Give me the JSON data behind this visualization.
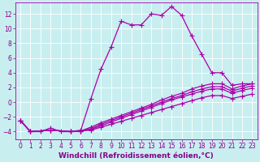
{
  "xlabel": "Windchill (Refroidissement éolien,°C)",
  "xlim": [
    -0.5,
    23.5
  ],
  "ylim": [
    -5,
    13.5
  ],
  "xticks": [
    0,
    1,
    2,
    3,
    4,
    5,
    6,
    7,
    8,
    9,
    10,
    11,
    12,
    13,
    14,
    15,
    16,
    17,
    18,
    19,
    20,
    21,
    22,
    23
  ],
  "yticks": [
    -4,
    -2,
    0,
    2,
    4,
    6,
    8,
    10,
    12
  ],
  "bg_color": "#c8eef0",
  "line_color": "#aa00aa",
  "grid_color": "#ffffff",
  "lines": [
    {
      "x": [
        0,
        1,
        2,
        3,
        4,
        5,
        6,
        7,
        8,
        9,
        10,
        11,
        12,
        13,
        14,
        15,
        16,
        17,
        18,
        19,
        20,
        21,
        22,
        23
      ],
      "y": [
        -2.5,
        -4,
        -4,
        -3.5,
        -4,
        -4,
        -3.8,
        0.5,
        4.5,
        7.5,
        11,
        10.5,
        10.5,
        12,
        11.8,
        13,
        11.8,
        9,
        6.5,
        4,
        4,
        2.3,
        2.5,
        2.5
      ]
    },
    {
      "x": [
        0,
        1,
        3,
        5,
        6,
        7,
        8,
        9,
        10,
        11,
        12,
        13,
        14,
        15,
        16,
        17,
        18,
        19,
        20,
        21,
        22,
        23
      ],
      "y": [
        -2.5,
        -4,
        -3.8,
        -4,
        -3.9,
        -3.4,
        -2.8,
        -2.3,
        -1.8,
        -1.3,
        -0.8,
        -0.3,
        0.3,
        0.8,
        1.2,
        1.8,
        2.2,
        2.5,
        2.5,
        1.8,
        2.2,
        2.5
      ]
    },
    {
      "x": [
        0,
        1,
        3,
        5,
        6,
        7,
        8,
        9,
        10,
        11,
        12,
        13,
        14,
        15,
        16,
        17,
        18,
        19,
        20,
        21,
        22,
        23
      ],
      "y": [
        -2.5,
        -4,
        -3.8,
        -4,
        -3.9,
        -3.6,
        -3.0,
        -2.5,
        -2.0,
        -1.5,
        -1.0,
        -0.5,
        0.0,
        0.5,
        0.9,
        1.4,
        1.8,
        2.1,
        2.1,
        1.5,
        1.9,
        2.2
      ]
    },
    {
      "x": [
        0,
        1,
        3,
        5,
        6,
        7,
        8,
        9,
        10,
        11,
        12,
        13,
        14,
        15,
        16,
        17,
        18,
        19,
        20,
        21,
        22,
        23
      ],
      "y": [
        -2.5,
        -4,
        -3.8,
        -4,
        -3.9,
        -3.7,
        -3.2,
        -2.7,
        -2.2,
        -1.7,
        -1.2,
        -0.7,
        -0.2,
        0.3,
        0.7,
        1.1,
        1.5,
        1.8,
        1.8,
        1.2,
        1.6,
        1.9
      ]
    },
    {
      "x": [
        0,
        1,
        3,
        5,
        6,
        7,
        8,
        9,
        10,
        11,
        12,
        13,
        14,
        15,
        16,
        17,
        18,
        19,
        20,
        21,
        22,
        23
      ],
      "y": [
        -2.5,
        -4,
        -3.8,
        -4,
        -3.9,
        -3.8,
        -3.4,
        -3.0,
        -2.6,
        -2.2,
        -1.8,
        -1.4,
        -1.0,
        -0.6,
        -0.2,
        0.2,
        0.6,
        0.9,
        0.9,
        0.5,
        0.8,
        1.1
      ]
    }
  ],
  "marker": "+",
  "markersize": 4,
  "linewidth": 0.9,
  "tick_fontsize": 5.5,
  "xlabel_fontsize": 6.5,
  "font_color": "#880088"
}
